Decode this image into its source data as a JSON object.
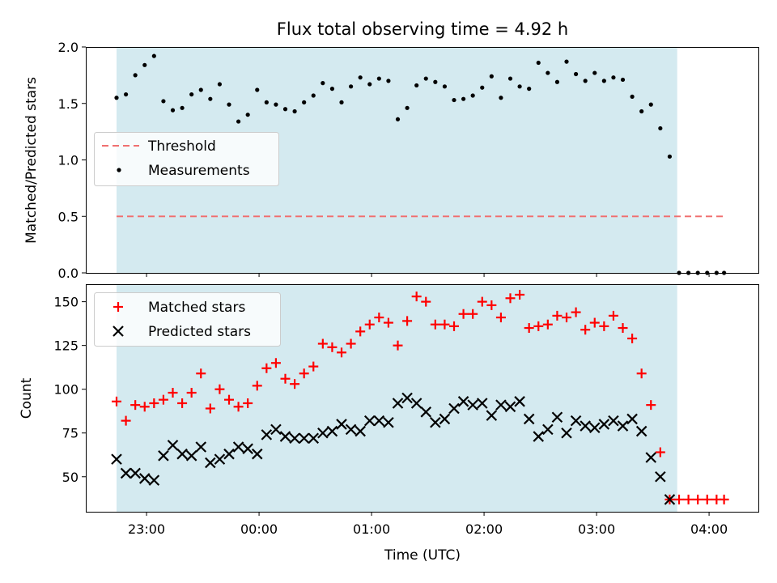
{
  "chart_data": {
    "type": "scatter",
    "title": "Flux total observing time = 4.92 h",
    "xlabel": "Time (UTC)",
    "x_tick_labels": [
      "23:00",
      "00:00",
      "01:00",
      "02:00",
      "03:00",
      "04:00"
    ],
    "observing_window_color": "#d4eaf0",
    "panels": [
      {
        "ylabel": "Matched/Predicted stars",
        "ylim": [
          0,
          2.0
        ],
        "y_ticks": [
          0.0,
          0.5,
          1.0,
          1.5,
          2.0
        ],
        "y_tick_labels": [
          "0.0",
          "0.5",
          "1.0",
          "1.5",
          "2.0"
        ],
        "legend_position": "center-left",
        "series": [
          {
            "name": "Threshold",
            "kind": "dashed-line",
            "color": "#f07070",
            "y": 0.5,
            "x_start_min": 0,
            "x_end_min": 324
          },
          {
            "name": "Measurements",
            "kind": "dots",
            "color": "#000000",
            "points": [
              [
                0,
                1.55
              ],
              [
                5,
                1.58
              ],
              [
                10,
                1.75
              ],
              [
                15,
                1.84
              ],
              [
                20,
                1.92
              ],
              [
                25,
                1.52
              ],
              [
                30,
                1.44
              ],
              [
                35,
                1.46
              ],
              [
                40,
                1.58
              ],
              [
                45,
                1.62
              ],
              [
                50,
                1.54
              ],
              [
                55,
                1.67
              ],
              [
                60,
                1.49
              ],
              [
                65,
                1.34
              ],
              [
                70,
                1.4
              ],
              [
                75,
                1.62
              ],
              [
                80,
                1.51
              ],
              [
                85,
                1.49
              ],
              [
                90,
                1.45
              ],
              [
                95,
                1.43
              ],
              [
                100,
                1.51
              ],
              [
                105,
                1.57
              ],
              [
                110,
                1.68
              ],
              [
                115,
                1.63
              ],
              [
                120,
                1.51
              ],
              [
                125,
                1.65
              ],
              [
                130,
                1.73
              ],
              [
                135,
                1.67
              ],
              [
                140,
                1.72
              ],
              [
                145,
                1.7
              ],
              [
                150,
                1.36
              ],
              [
                155,
                1.46
              ],
              [
                160,
                1.66
              ],
              [
                165,
                1.72
              ],
              [
                170,
                1.69
              ],
              [
                175,
                1.65
              ],
              [
                180,
                1.53
              ],
              [
                185,
                1.54
              ],
              [
                190,
                1.57
              ],
              [
                195,
                1.64
              ],
              [
                200,
                1.74
              ],
              [
                205,
                1.55
              ],
              [
                210,
                1.72
              ],
              [
                215,
                1.65
              ],
              [
                220,
                1.63
              ],
              [
                225,
                1.86
              ],
              [
                230,
                1.77
              ],
              [
                235,
                1.69
              ],
              [
                240,
                1.87
              ],
              [
                245,
                1.76
              ],
              [
                250,
                1.7
              ],
              [
                255,
                1.77
              ],
              [
                260,
                1.7
              ],
              [
                265,
                1.73
              ],
              [
                270,
                1.71
              ],
              [
                275,
                1.56
              ],
              [
                280,
                1.43
              ],
              [
                285,
                1.49
              ],
              [
                290,
                1.28
              ],
              [
                295,
                1.03
              ],
              [
                300,
                0.0
              ],
              [
                305,
                0.0
              ],
              [
                310,
                0.0
              ],
              [
                315,
                0.0
              ],
              [
                320,
                0.0
              ],
              [
                324,
                0.0
              ]
            ]
          }
        ]
      },
      {
        "ylabel": "Count",
        "ylim": [
          30,
          160
        ],
        "y_ticks": [
          50,
          75,
          100,
          125,
          150
        ],
        "y_tick_labels": [
          "50",
          "75",
          "100",
          "125",
          "150"
        ],
        "legend_position": "upper-left",
        "series": [
          {
            "name": "Matched stars",
            "kind": "plus",
            "color": "#ff0000",
            "points": [
              [
                0,
                93
              ],
              [
                5,
                82
              ],
              [
                10,
                91
              ],
              [
                15,
                90
              ],
              [
                20,
                92
              ],
              [
                25,
                94
              ],
              [
                30,
                98
              ],
              [
                35,
                92
              ],
              [
                40,
                98
              ],
              [
                45,
                109
              ],
              [
                50,
                89
              ],
              [
                55,
                100
              ],
              [
                60,
                94
              ],
              [
                65,
                90
              ],
              [
                70,
                92
              ],
              [
                75,
                102
              ],
              [
                80,
                112
              ],
              [
                85,
                115
              ],
              [
                90,
                106
              ],
              [
                95,
                103
              ],
              [
                100,
                109
              ],
              [
                105,
                113
              ],
              [
                110,
                126
              ],
              [
                115,
                124
              ],
              [
                120,
                121
              ],
              [
                125,
                126
              ],
              [
                130,
                133
              ],
              [
                135,
                137
              ],
              [
                140,
                141
              ],
              [
                145,
                138
              ],
              [
                150,
                125
              ],
              [
                155,
                139
              ],
              [
                160,
                153
              ],
              [
                165,
                150
              ],
              [
                170,
                137
              ],
              [
                175,
                137
              ],
              [
                180,
                136
              ],
              [
                185,
                143
              ],
              [
                190,
                143
              ],
              [
                195,
                150
              ],
              [
                200,
                148
              ],
              [
                205,
                141
              ],
              [
                210,
                152
              ],
              [
                215,
                154
              ],
              [
                220,
                135
              ],
              [
                225,
                136
              ],
              [
                230,
                137
              ],
              [
                235,
                142
              ],
              [
                240,
                141
              ],
              [
                245,
                144
              ],
              [
                250,
                134
              ],
              [
                255,
                138
              ],
              [
                260,
                136
              ],
              [
                265,
                142
              ],
              [
                270,
                135
              ],
              [
                275,
                129
              ],
              [
                280,
                109
              ],
              [
                285,
                91
              ],
              [
                290,
                64
              ],
              [
                295,
                37
              ],
              [
                300,
                37
              ],
              [
                305,
                37
              ],
              [
                310,
                37
              ],
              [
                315,
                37
              ],
              [
                320,
                37
              ],
              [
                324,
                37
              ]
            ]
          },
          {
            "name": "Predicted stars",
            "kind": "cross",
            "color": "#000000",
            "points": [
              [
                0,
                60
              ],
              [
                5,
                52
              ],
              [
                10,
                52
              ],
              [
                15,
                49
              ],
              [
                20,
                48
              ],
              [
                25,
                62
              ],
              [
                30,
                68
              ],
              [
                35,
                63
              ],
              [
                40,
                62
              ],
              [
                45,
                67
              ],
              [
                50,
                58
              ],
              [
                55,
                60
              ],
              [
                60,
                63
              ],
              [
                65,
                67
              ],
              [
                70,
                66
              ],
              [
                75,
                63
              ],
              [
                80,
                74
              ],
              [
                85,
                77
              ],
              [
                90,
                73
              ],
              [
                95,
                72
              ],
              [
                100,
                72
              ],
              [
                105,
                72
              ],
              [
                110,
                75
              ],
              [
                115,
                76
              ],
              [
                120,
                80
              ],
              [
                125,
                77
              ],
              [
                130,
                76
              ],
              [
                135,
                82
              ],
              [
                140,
                82
              ],
              [
                145,
                81
              ],
              [
                150,
                92
              ],
              [
                155,
                95
              ],
              [
                160,
                92
              ],
              [
                165,
                87
              ],
              [
                170,
                81
              ],
              [
                175,
                83
              ],
              [
                180,
                89
              ],
              [
                185,
                93
              ],
              [
                190,
                91
              ],
              [
                195,
                92
              ],
              [
                200,
                85
              ],
              [
                205,
                91
              ],
              [
                210,
                90
              ],
              [
                215,
                93
              ],
              [
                220,
                83
              ],
              [
                225,
                73
              ],
              [
                230,
                77
              ],
              [
                235,
                84
              ],
              [
                240,
                75
              ],
              [
                245,
                82
              ],
              [
                250,
                79
              ],
              [
                255,
                78
              ],
              [
                260,
                80
              ],
              [
                265,
                82
              ],
              [
                270,
                79
              ],
              [
                275,
                83
              ],
              [
                280,
                76
              ],
              [
                285,
                61
              ],
              [
                290,
                50
              ],
              [
                295,
                37
              ]
            ]
          }
        ]
      }
    ]
  }
}
